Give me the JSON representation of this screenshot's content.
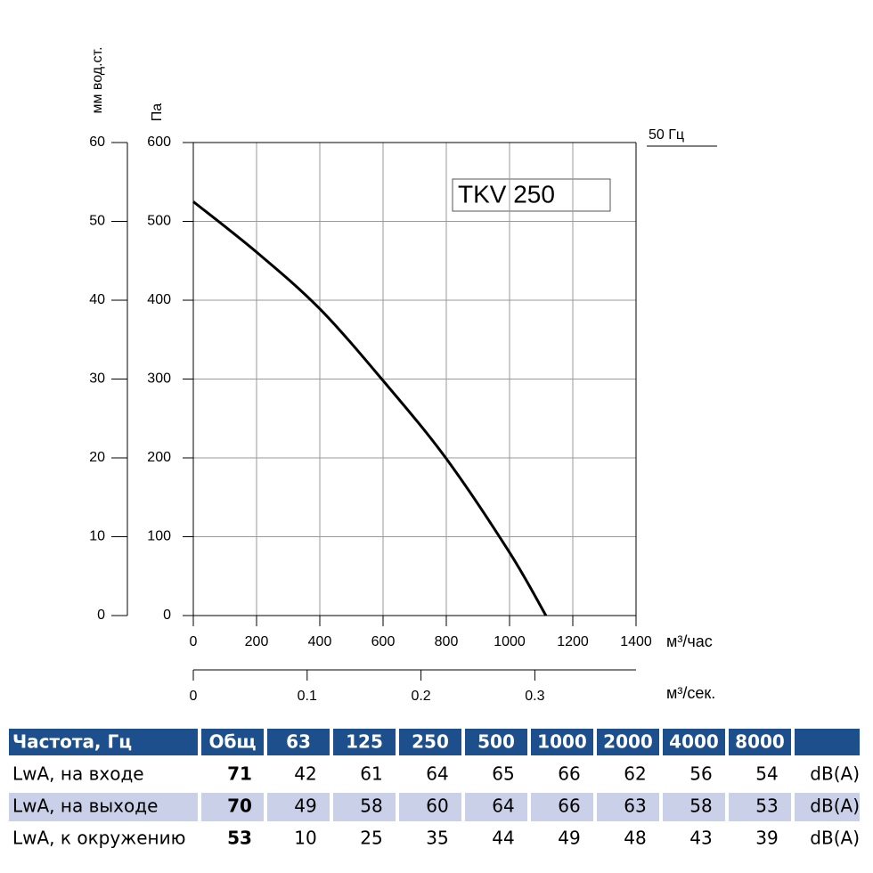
{
  "chart_data": {
    "type": "line",
    "title": "TKV 250",
    "annotation": "50 Гц",
    "y_label": "Па",
    "y2_label": "мм вод.ст.",
    "x_label": "м³/час",
    "x2_label": "м³/сек.",
    "x": [
      0,
      200,
      400,
      600,
      800,
      1000,
      1115
    ],
    "series": [
      {
        "color": "#000000",
        "values": [
          525,
          461,
          389,
          298,
          199,
          80,
          0
        ]
      }
    ],
    "xlim": [
      0,
      1400
    ],
    "xticks": [
      0,
      200,
      400,
      600,
      800,
      1000,
      1200,
      1400
    ],
    "ylim": [
      0,
      600
    ],
    "yticks": [
      0,
      100,
      200,
      300,
      400,
      500,
      600
    ],
    "y2lim": [
      0,
      60
    ],
    "y2ticks": [
      0,
      10,
      20,
      30,
      40,
      50,
      60
    ],
    "x2lim": [
      0,
      0.3889
    ],
    "x2ticks": [
      0,
      0.1,
      0.2,
      0.3
    ],
    "grid": true
  },
  "table": {
    "header": [
      "Частота, Гц",
      "Общ",
      "63",
      "125",
      "250",
      "500",
      "1000",
      "2000",
      "4000",
      "8000"
    ],
    "rows": [
      [
        "LwA, на входе",
        "71",
        "42",
        "61",
        "64",
        "65",
        "66",
        "62",
        "56",
        "54",
        "dB(A)"
      ],
      [
        "LwA, на выходе",
        "70",
        "49",
        "58",
        "60",
        "64",
        "66",
        "63",
        "58",
        "53",
        "dB(A)"
      ],
      [
        "LwA, к окружению",
        "53",
        "10",
        "25",
        "35",
        "44",
        "49",
        "48",
        "43",
        "39",
        "dB(A)"
      ]
    ]
  }
}
